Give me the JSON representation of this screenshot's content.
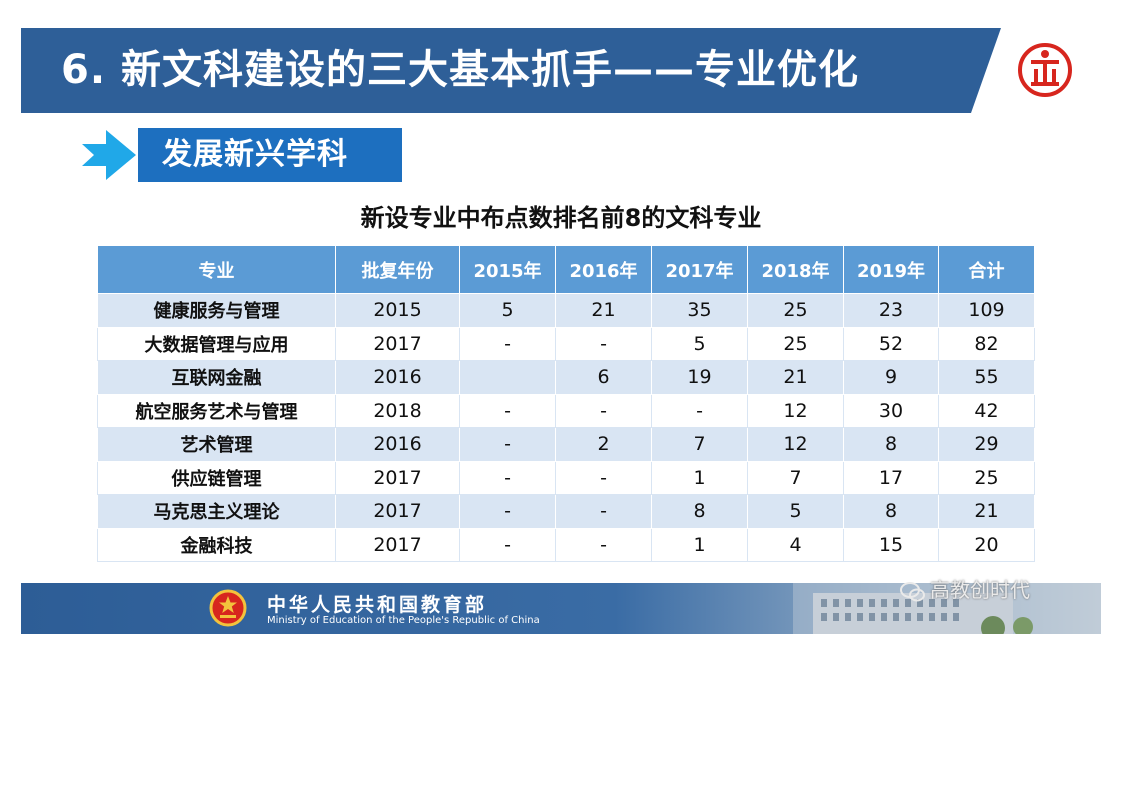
{
  "header": {
    "title": "6. 新文科建设的三大基本抓手——专业优化",
    "logo_icon": "university-seal-icon"
  },
  "section": {
    "label": "发展新兴学科"
  },
  "table": {
    "title": "新设专业中布点数排名前8的文科专业",
    "columns": [
      "专业",
      "批复年份",
      "2015年",
      "2016年",
      "2017年",
      "2018年",
      "2019年",
      "合计"
    ],
    "rows": [
      [
        "健康服务与管理",
        "2015",
        "5",
        "21",
        "35",
        "25",
        "23",
        "109"
      ],
      [
        "大数据管理与应用",
        "2017",
        "-",
        "-",
        "5",
        "25",
        "52",
        "82"
      ],
      [
        "互联网金融",
        "2016",
        "",
        "6",
        "19",
        "21",
        "9",
        "55"
      ],
      [
        "航空服务艺术与管理",
        "2018",
        "-",
        "-",
        "-",
        "12",
        "30",
        "42"
      ],
      [
        "艺术管理",
        "2016",
        "-",
        "2",
        "7",
        "12",
        "8",
        "29"
      ],
      [
        "供应链管理",
        "2017",
        "-",
        "-",
        "1",
        "7",
        "17",
        "25"
      ],
      [
        "马克思主义理论",
        "2017",
        "-",
        "-",
        "8",
        "5",
        "8",
        "21"
      ],
      [
        "金融科技",
        "2017",
        "-",
        "-",
        "1",
        "4",
        "15",
        "20"
      ]
    ]
  },
  "footer": {
    "ministry_cn": "中华人民共和国教育部",
    "ministry_en": "Ministry of Education of the People's Republic of China",
    "emblem_icon": "national-emblem-icon"
  },
  "watermark": {
    "text": "高教创时代",
    "icon": "wechat-icon"
  },
  "colors": {
    "header_bg": "#2e5f98",
    "section_bg": "#1d6fbf",
    "table_header_bg": "#5b9bd5",
    "row_alt_bg": "#d9e5f3",
    "logo_red": "#d7261e"
  }
}
